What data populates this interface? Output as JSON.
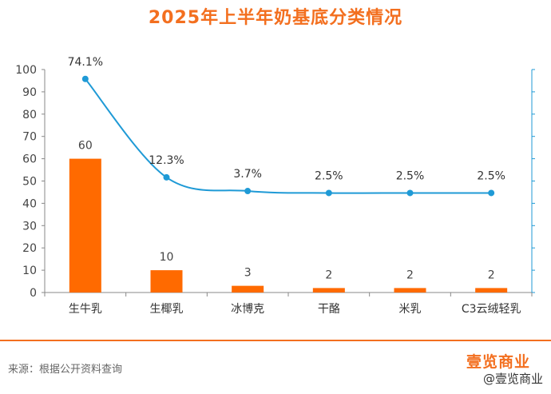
{
  "title": "2025年上半年奶基底分类情况",
  "source": "来源：根据公开资料查询",
  "logo": "壹览商业",
  "watermark": "@壹览商业",
  "colors": {
    "bar": "#ff6a00",
    "line": "#1f9ad6",
    "title": "#f36f1f",
    "axis": "#444444"
  },
  "chart_data": {
    "type": "bar",
    "categories": [
      "生牛乳",
      "生椰乳",
      "冰博克",
      "干酪",
      "米乳",
      "C3云绒轻乳"
    ],
    "ylim": [
      0,
      100
    ],
    "yticks": [
      "0",
      "10",
      "20",
      "30",
      "40",
      "50",
      "60",
      "70",
      "80",
      "90",
      "100"
    ],
    "grid": false,
    "series": [
      {
        "type": "bar",
        "values": [
          60,
          10,
          3,
          2,
          2,
          2
        ],
        "labels": [
          "60",
          "10",
          "3",
          "2",
          "2",
          "2"
        ]
      },
      {
        "type": "line",
        "secondary_axis": true,
        "values": [
          74.1,
          12.3,
          3.7,
          2.5,
          2.5,
          2.5
        ],
        "labels": [
          "74.1%",
          "12.3%",
          "3.7%",
          "2.5%",
          "2.5%",
          "2.5%"
        ]
      }
    ]
  }
}
